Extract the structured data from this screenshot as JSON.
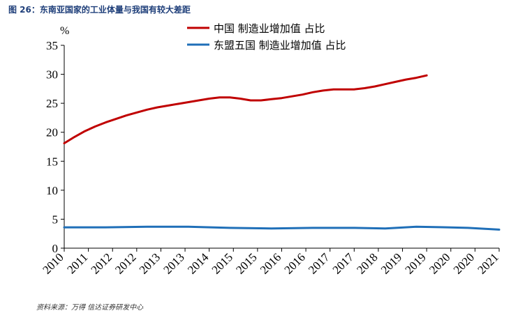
{
  "figure_title": "图 26：东南亚国家的工业体量与我国有较大差距",
  "source_note": "资料来源：万得  信达证券研发中心",
  "chart_data": {
    "type": "line",
    "ylabel": "%",
    "ylim": [
      0,
      35
    ],
    "yticks": [
      0,
      5,
      10,
      15,
      20,
      25,
      30,
      35
    ],
    "x_tick_labels": [
      "2010",
      "2011",
      "2012",
      "2012",
      "2013",
      "2013",
      "2014",
      "2015",
      "2015",
      "2016",
      "2016",
      "2017",
      "2017",
      "2018",
      "2019",
      "2019",
      "2020",
      "2020",
      "2021"
    ],
    "grid": false,
    "legend_position": "top",
    "series": [
      {
        "name": "中国 制造业增加值 占比",
        "color": "#c00000",
        "points": [
          [
            0,
            18.1
          ],
          [
            0.5,
            19.2
          ],
          [
            1,
            20.2
          ],
          [
            1.5,
            21.0
          ],
          [
            2,
            21.7
          ],
          [
            2.5,
            22.3
          ],
          [
            3,
            22.9
          ],
          [
            3.5,
            23.4
          ],
          [
            4,
            23.9
          ],
          [
            4.5,
            24.3
          ],
          [
            5,
            24.6
          ],
          [
            5.5,
            24.9
          ],
          [
            6,
            25.2
          ],
          [
            6.5,
            25.5
          ],
          [
            7,
            25.8
          ],
          [
            7.5,
            26.0
          ],
          [
            8,
            26.0
          ],
          [
            8.5,
            25.8
          ],
          [
            9,
            25.5
          ],
          [
            9.5,
            25.5
          ],
          [
            10,
            25.7
          ],
          [
            10.5,
            25.9
          ],
          [
            11,
            26.2
          ],
          [
            11.5,
            26.5
          ],
          [
            12,
            26.9
          ],
          [
            12.5,
            27.2
          ],
          [
            13,
            27.4
          ],
          [
            13.5,
            27.4
          ],
          [
            14,
            27.4
          ],
          [
            14.5,
            27.6
          ],
          [
            15,
            27.9
          ],
          [
            15.5,
            28.3
          ],
          [
            16,
            28.7
          ],
          [
            16.5,
            29.1
          ],
          [
            17,
            29.4
          ],
          [
            17.5,
            29.8
          ]
        ]
      },
      {
        "name": "东盟五国 制造业增加值 占比",
        "color": "#1f6fb8",
        "points": [
          [
            0,
            3.6
          ],
          [
            2,
            3.6
          ],
          [
            4,
            3.7
          ],
          [
            6,
            3.7
          ],
          [
            8,
            3.5
          ],
          [
            10,
            3.4
          ],
          [
            12,
            3.5
          ],
          [
            14,
            3.5
          ],
          [
            15.5,
            3.4
          ],
          [
            17,
            3.7
          ],
          [
            18.5,
            3.6
          ],
          [
            19.5,
            3.5
          ],
          [
            21,
            3.2
          ]
        ]
      }
    ]
  }
}
